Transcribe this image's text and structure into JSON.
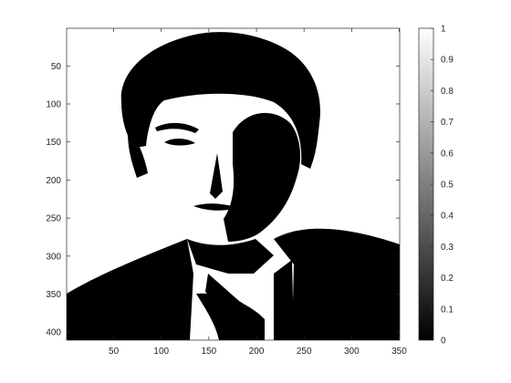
{
  "chart_data": {
    "type": "heatmap",
    "subtype": "binary-image",
    "colormap": "gray",
    "colors": {
      "low": "#000000",
      "high": "#ffffff",
      "axis": "#262626"
    },
    "x_range": [
      0.5,
      350.5
    ],
    "y_range": [
      0.5,
      410.5
    ],
    "y_reversed": true,
    "x_ticks": [
      50,
      100,
      150,
      200,
      250,
      300,
      350
    ],
    "y_ticks": [
      50,
      100,
      150,
      200,
      250,
      300,
      350,
      400
    ],
    "colorbar": {
      "range": [
        0,
        1
      ],
      "ticks": [
        0,
        0.1,
        0.2,
        0.3,
        0.4,
        0.5,
        0.6,
        0.7,
        0.8,
        0.9,
        1
      ],
      "tick_labels": [
        "0",
        "0.1",
        "0.2",
        "0.3",
        "0.4",
        "0.5",
        "0.6",
        "0.7",
        "0.8",
        "0.9",
        "1"
      ]
    },
    "title": "",
    "xlabel": "",
    "ylabel": "",
    "grid": false
  }
}
